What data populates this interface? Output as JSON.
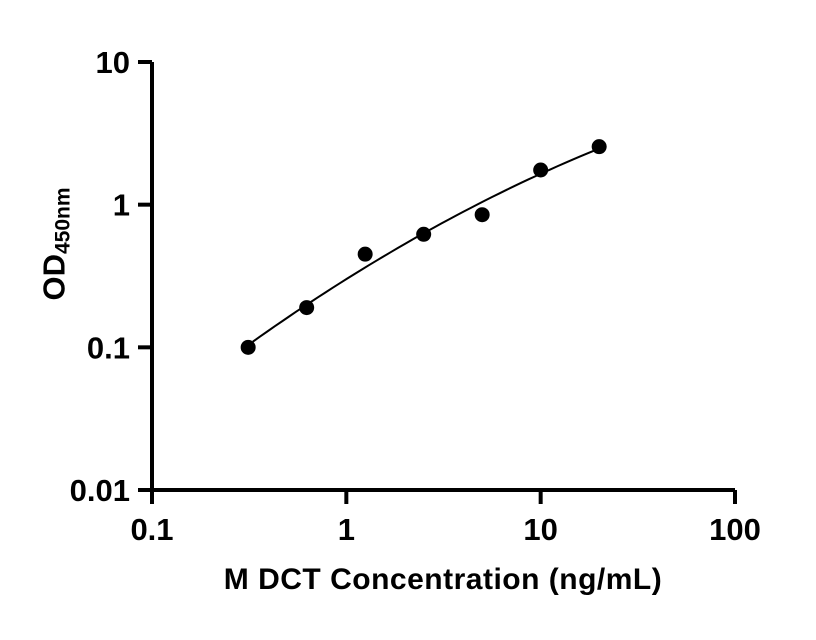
{
  "chart_data": {
    "type": "scatter",
    "title": "",
    "xlabel": "M DCT Concentration (ng/mL)",
    "ylabel": {
      "main": "OD",
      "sub": "450nm"
    },
    "x_scale": "log",
    "y_scale": "log",
    "xlim": [
      0.1,
      100
    ],
    "ylim": [
      0.01,
      10
    ],
    "grid": false,
    "legend": "none",
    "x_ticks": [
      {
        "value": 0.1,
        "label": "0.1"
      },
      {
        "value": 1,
        "label": "1"
      },
      {
        "value": 10,
        "label": "10"
      },
      {
        "value": 100,
        "label": "100"
      }
    ],
    "y_ticks": [
      {
        "value": 10,
        "label": "10"
      },
      {
        "value": 1,
        "label": "1"
      },
      {
        "value": 0.1,
        "label": "0.1"
      },
      {
        "value": 0.01,
        "label": "0.01"
      }
    ],
    "points": [
      {
        "x": 0.3125,
        "y": 0.1
      },
      {
        "x": 0.625,
        "y": 0.19
      },
      {
        "x": 1.25,
        "y": 0.45
      },
      {
        "x": 2.5,
        "y": 0.62
      },
      {
        "x": 5,
        "y": 0.85
      },
      {
        "x": 10,
        "y": 1.75
      },
      {
        "x": 20,
        "y": 2.55
      }
    ],
    "trend_line": {
      "fit": "quadratic-loglog",
      "x_start": 0.33,
      "x_end": 20.5
    },
    "colors": {
      "points": "#000000",
      "line": "#000000",
      "axis": "#000000"
    }
  }
}
